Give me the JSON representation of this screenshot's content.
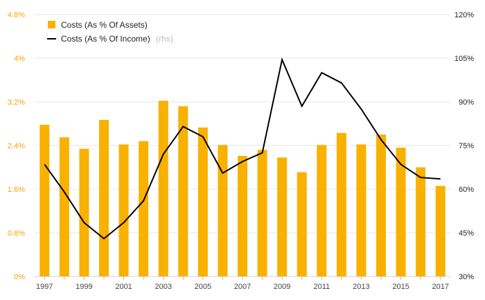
{
  "chart_data": {
    "type": "bar+line",
    "categories": [
      "1997",
      "1998",
      "1999",
      "2000",
      "2001",
      "2002",
      "2003",
      "2004",
      "2005",
      "2006",
      "2007",
      "2008",
      "2009",
      "2010",
      "2011",
      "2012",
      "2013",
      "2014",
      "2015",
      "2016",
      "2017"
    ],
    "x_tick_labels": [
      "1997",
      "1999",
      "2001",
      "2003",
      "2005",
      "2007",
      "2009",
      "2011",
      "2013",
      "2015",
      "2017"
    ],
    "series": [
      {
        "name": "Costs (As % Of Assets)",
        "type": "bar",
        "axis": "left",
        "color": "#f9b100",
        "values": [
          2.78,
          2.55,
          2.34,
          2.87,
          2.42,
          2.48,
          3.22,
          3.12,
          2.73,
          2.41,
          2.21,
          2.32,
          2.18,
          1.91,
          2.41,
          2.63,
          2.42,
          2.6,
          2.36,
          2.0,
          1.66
        ]
      },
      {
        "name": "Costs (As % Of Income)",
        "name_note": "(rhs)",
        "type": "line",
        "axis": "right",
        "color": "#000000",
        "values": [
          68.5,
          59.0,
          48.5,
          43.0,
          48.5,
          56.0,
          72.0,
          81.5,
          78.0,
          65.5,
          69.5,
          72.5,
          104.5,
          88.5,
          100.0,
          96.5,
          87.5,
          77.0,
          68.5,
          64.0,
          63.5
        ]
      }
    ],
    "y_left": {
      "min": 0,
      "max": 4.8,
      "step": 0.8,
      "tick_labels": [
        "0%",
        "0.8%",
        "1.6%",
        "2.4%",
        "3.2%",
        "4%",
        "4.8%"
      ],
      "color": "#f4a400"
    },
    "y_right": {
      "min": 30,
      "max": 120,
      "step": 15,
      "tick_labels": [
        "30%",
        "45%",
        "60%",
        "75%",
        "90%",
        "105%",
        "120%"
      ]
    },
    "grid": true,
    "legend_position": "top-left"
  }
}
